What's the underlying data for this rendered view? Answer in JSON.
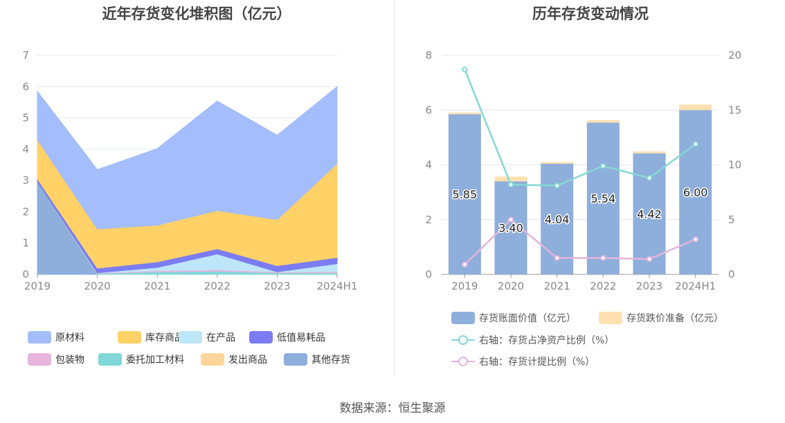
{
  "footer": {
    "source": "数据来源：恒生聚源"
  },
  "chart_data": [
    {
      "type": "area",
      "title": "近年存货变化堆积图（亿元）",
      "x": [
        "2019",
        "2020",
        "2021",
        "2022",
        "2023",
        "2024H1"
      ],
      "ylim": [
        0,
        7
      ],
      "yticks": [
        0,
        1,
        2,
        3,
        4,
        5,
        6,
        7
      ],
      "grid": true,
      "legend_position": "bottom",
      "stacked": true,
      "series": [
        {
          "name": "其他存货",
          "color": "#8eaedb",
          "values": [
            2.95,
            0.0,
            0.0,
            0.0,
            0.0,
            0.0
          ]
        },
        {
          "name": "发出商品",
          "color": "#ffd59b",
          "values": [
            0.0,
            0.0,
            0.0,
            0.0,
            0.0,
            0.0
          ]
        },
        {
          "name": "委托加工材料",
          "color": "#80d8d8",
          "values": [
            0.0,
            0.03,
            0.08,
            0.1,
            0.05,
            0.05
          ]
        },
        {
          "name": "包装物",
          "color": "#e8b4dc",
          "values": [
            0.0,
            0.02,
            0.04,
            0.05,
            0.03,
            0.04
          ]
        },
        {
          "name": "在产品",
          "color": "#bde6f8",
          "values": [
            0.0,
            0.0,
            0.1,
            0.5,
            0.0,
            0.25
          ]
        },
        {
          "name": "低值易耗品",
          "color": "#7c7cf2",
          "values": [
            0.1,
            0.15,
            0.18,
            0.17,
            0.2,
            0.2
          ]
        },
        {
          "name": "库存商品",
          "color": "#ffd166",
          "values": [
            1.25,
            1.25,
            1.17,
            1.22,
            1.47,
            3.0
          ]
        },
        {
          "name": "原材料",
          "color": "#a4bdfc",
          "values": [
            1.55,
            1.9,
            2.45,
            3.5,
            2.7,
            2.46
          ]
        }
      ],
      "legend_order": [
        "原材料",
        "库存商品",
        "在产品",
        "低值易耗品",
        "包装物",
        "委托加工材料",
        "发出商品",
        "其他存货"
      ]
    },
    {
      "type": "bar",
      "title": "历年存货变动情况",
      "categories": [
        "2019",
        "2020",
        "2021",
        "2022",
        "2023",
        "2024H1"
      ],
      "ylim": [
        0,
        8
      ],
      "yticks": [
        0,
        2,
        4,
        6,
        8
      ],
      "y2lim": [
        0,
        20
      ],
      "y2ticks": [
        0,
        5,
        10,
        15,
        20
      ],
      "grid": true,
      "legend_position": "bottom",
      "series": [
        {
          "name": "存货账面价值（亿元）",
          "type": "bar",
          "axis": "left",
          "color": "#8eaedb",
          "values": [
            5.85,
            3.4,
            4.04,
            5.54,
            4.42,
            6.0
          ],
          "labels": [
            "5.85",
            "3.40",
            "4.04",
            "5.54",
            "4.42",
            "6.00"
          ]
        },
        {
          "name": "存货跌价准备（亿元）",
          "type": "bar",
          "axis": "left",
          "color": "#ffe0b0",
          "values": [
            0.06,
            0.17,
            0.06,
            0.09,
            0.07,
            0.2
          ]
        },
        {
          "name": "右轴：存货占净资产比例（%）",
          "type": "line",
          "axis": "right",
          "color": "#84d8d4",
          "values": [
            18.7,
            8.2,
            8.1,
            9.9,
            8.8,
            11.9
          ]
        },
        {
          "name": "右轴：存货计提比例（%）",
          "type": "line",
          "axis": "right",
          "color": "#e4b4dc",
          "values": [
            0.9,
            5.0,
            1.5,
            1.5,
            1.4,
            3.2
          ]
        }
      ]
    }
  ]
}
